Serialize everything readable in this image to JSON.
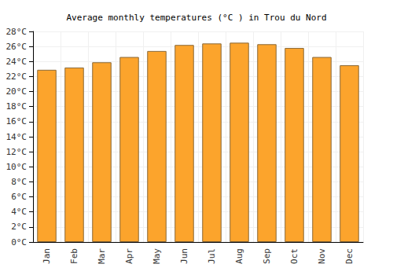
{
  "chart_data": {
    "type": "bar",
    "title": "Average monthly temperatures (°C ) in Trou du Nord",
    "categories": [
      "Jan",
      "Feb",
      "Mar",
      "Apr",
      "May",
      "Jun",
      "Jul",
      "Aug",
      "Sep",
      "Oct",
      "Nov",
      "Dec"
    ],
    "values": [
      22.9,
      23.2,
      23.9,
      24.6,
      25.4,
      26.2,
      26.4,
      26.5,
      26.3,
      25.8,
      24.6,
      23.5
    ],
    "color": "#fca42c",
    "ylim": [
      0,
      28
    ],
    "yticks": [
      {
        "value": 0,
        "label": "0°C"
      },
      {
        "value": 2,
        "label": "2°C"
      },
      {
        "value": 4,
        "label": "4°C"
      },
      {
        "value": 6,
        "label": "6°C"
      },
      {
        "value": 8,
        "label": "8°C"
      },
      {
        "value": 10,
        "label": "10°C"
      },
      {
        "value": 12,
        "label": "12°C"
      },
      {
        "value": 14,
        "label": "14°C"
      },
      {
        "value": 16,
        "label": "16°C"
      },
      {
        "value": 18,
        "label": "18°C"
      },
      {
        "value": 20,
        "label": "20°C"
      },
      {
        "value": 22,
        "label": "22°C"
      },
      {
        "value": 24,
        "label": "24°C"
      },
      {
        "value": 26,
        "label": "26°C"
      },
      {
        "value": 28,
        "label": "28°C"
      }
    ],
    "grid": true
  }
}
